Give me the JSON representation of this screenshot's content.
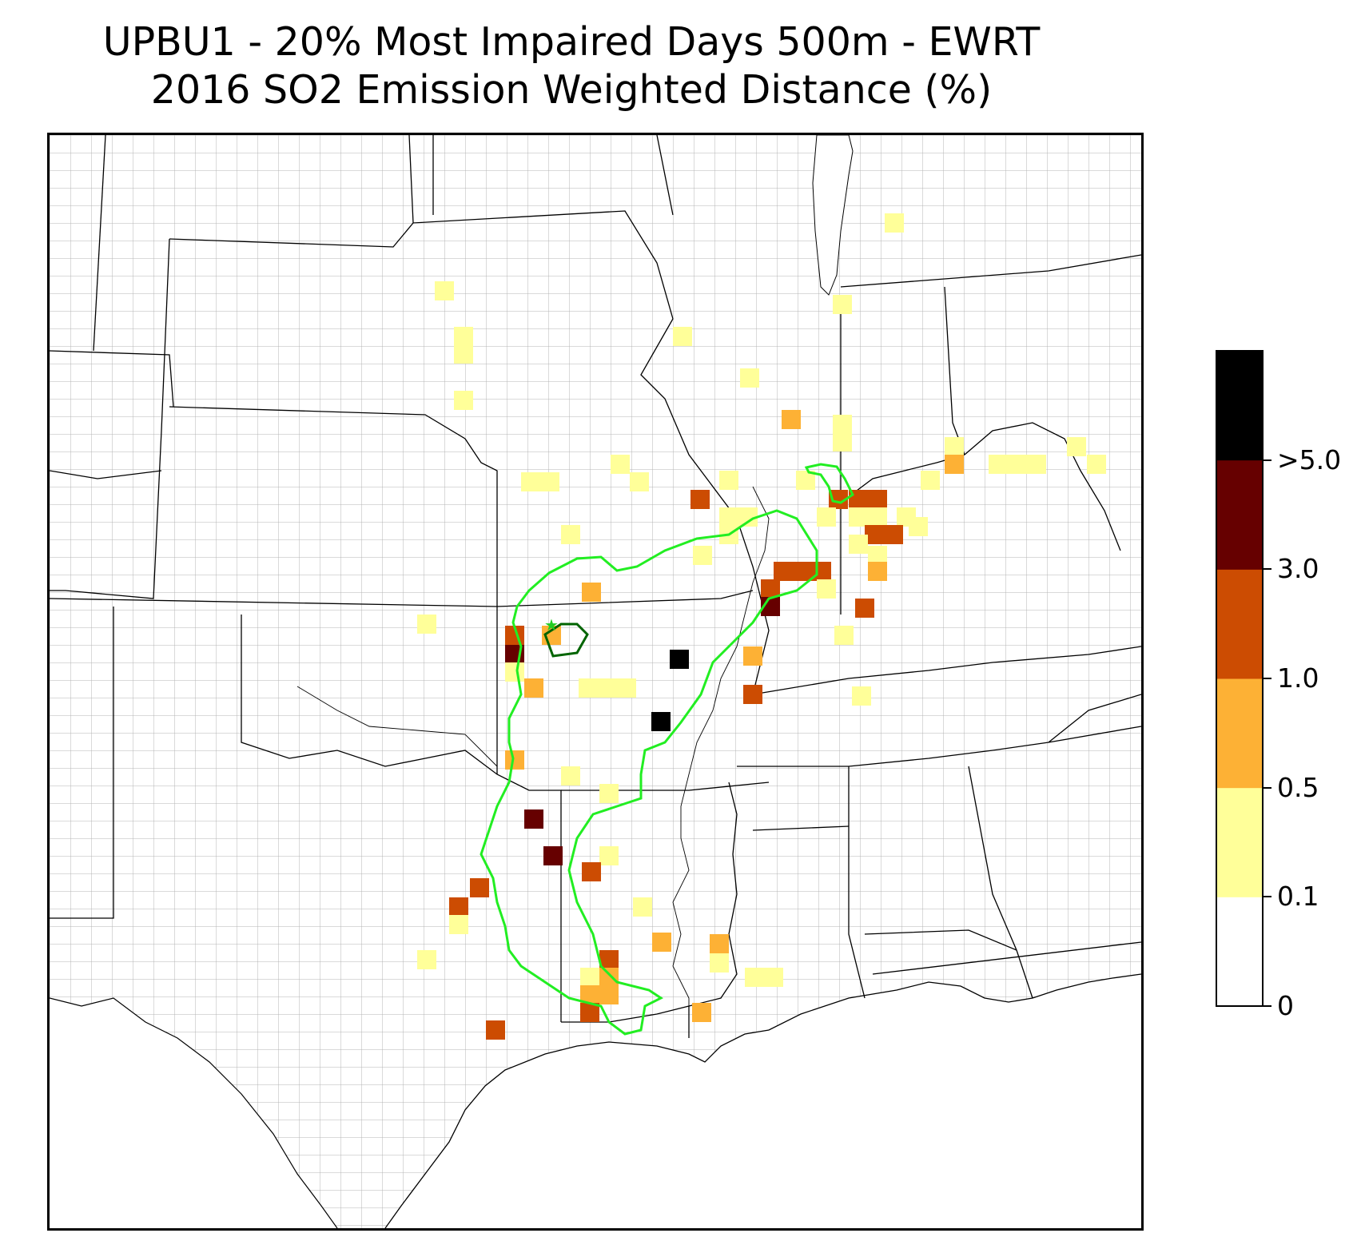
{
  "title_line1": "UPBU1 - 20% Most Impaired Days 500m - EWRT",
  "title_line2": "2016 SO2 Emission Weighted Distance (%)",
  "legend": {
    "bins": [
      {
        "label": "0",
        "color": "#ffffff"
      },
      {
        "label": "0.1",
        "color": "#ffff99"
      },
      {
        "label": "0.5",
        "color": "#fdb135"
      },
      {
        "label": "1.0",
        "color": "#cc4c02"
      },
      {
        "label": "3.0",
        "color": "#660000"
      },
      {
        "label": ">5.0",
        "color": "#000000"
      }
    ],
    "colors": {
      "c0": "#ffffff",
      "c1": "#ffff99",
      "c2": "#fdb135",
      "c3": "#cc4c02",
      "c4": "#660000",
      "c5": "#000000"
    }
  },
  "map": {
    "region": "Central United States",
    "contour_colors": {
      "outer": "#22ee22",
      "inner": "#006400"
    },
    "site_marker": "star-icon",
    "cell_bins_present": [
      "0.1-0.5",
      "0.5-1.0",
      "1.0-3.0",
      "3.0-5.0",
      ">5.0"
    ]
  }
}
